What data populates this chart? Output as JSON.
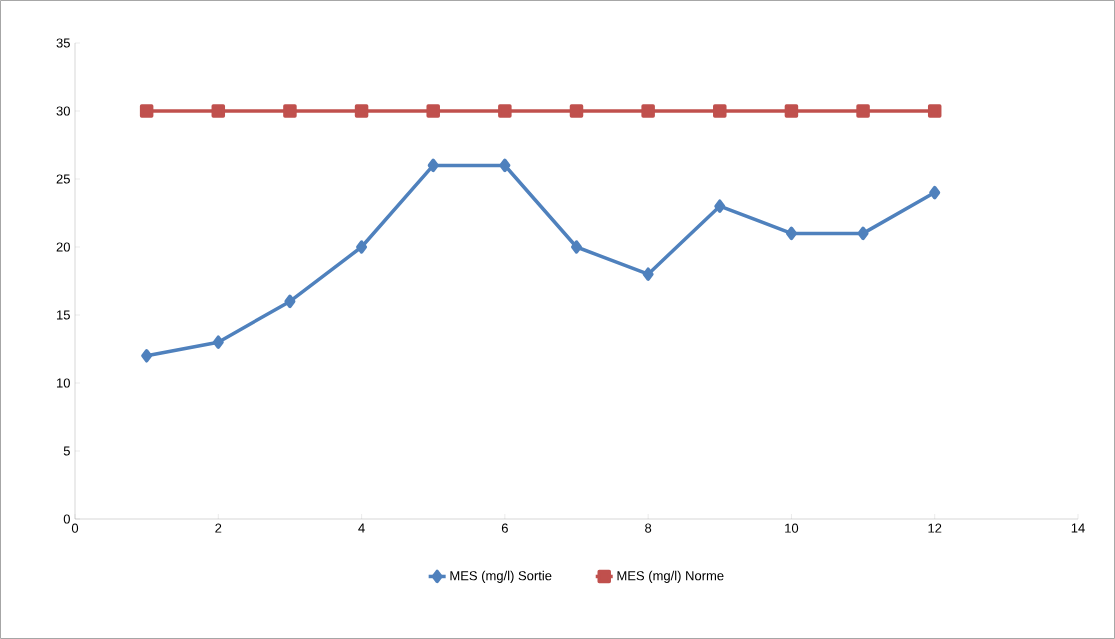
{
  "chart_data": {
    "type": "line",
    "x": [
      1,
      2,
      3,
      4,
      5,
      6,
      7,
      8,
      9,
      10,
      11,
      12
    ],
    "series": [
      {
        "name": "MES (mg/l) Sortie",
        "color": "#4f81bd",
        "marker": "diamond",
        "values": [
          12,
          13,
          16,
          20,
          26,
          26,
          20,
          18,
          23,
          21,
          21,
          24
        ]
      },
      {
        "name": "MES (mg/l) Norme",
        "color": "#c0504d",
        "marker": "square",
        "values": [
          30,
          30,
          30,
          30,
          30,
          30,
          30,
          30,
          30,
          30,
          30,
          30
        ]
      }
    ],
    "xlim": [
      0,
      14
    ],
    "xticks": [
      0,
      2,
      4,
      6,
      8,
      10,
      12,
      14
    ],
    "ylim": [
      0,
      35
    ],
    "yticks": [
      0,
      5,
      10,
      15,
      20,
      25,
      30,
      35
    ],
    "grid": false,
    "legend": "bottom",
    "line_style": "solid"
  }
}
